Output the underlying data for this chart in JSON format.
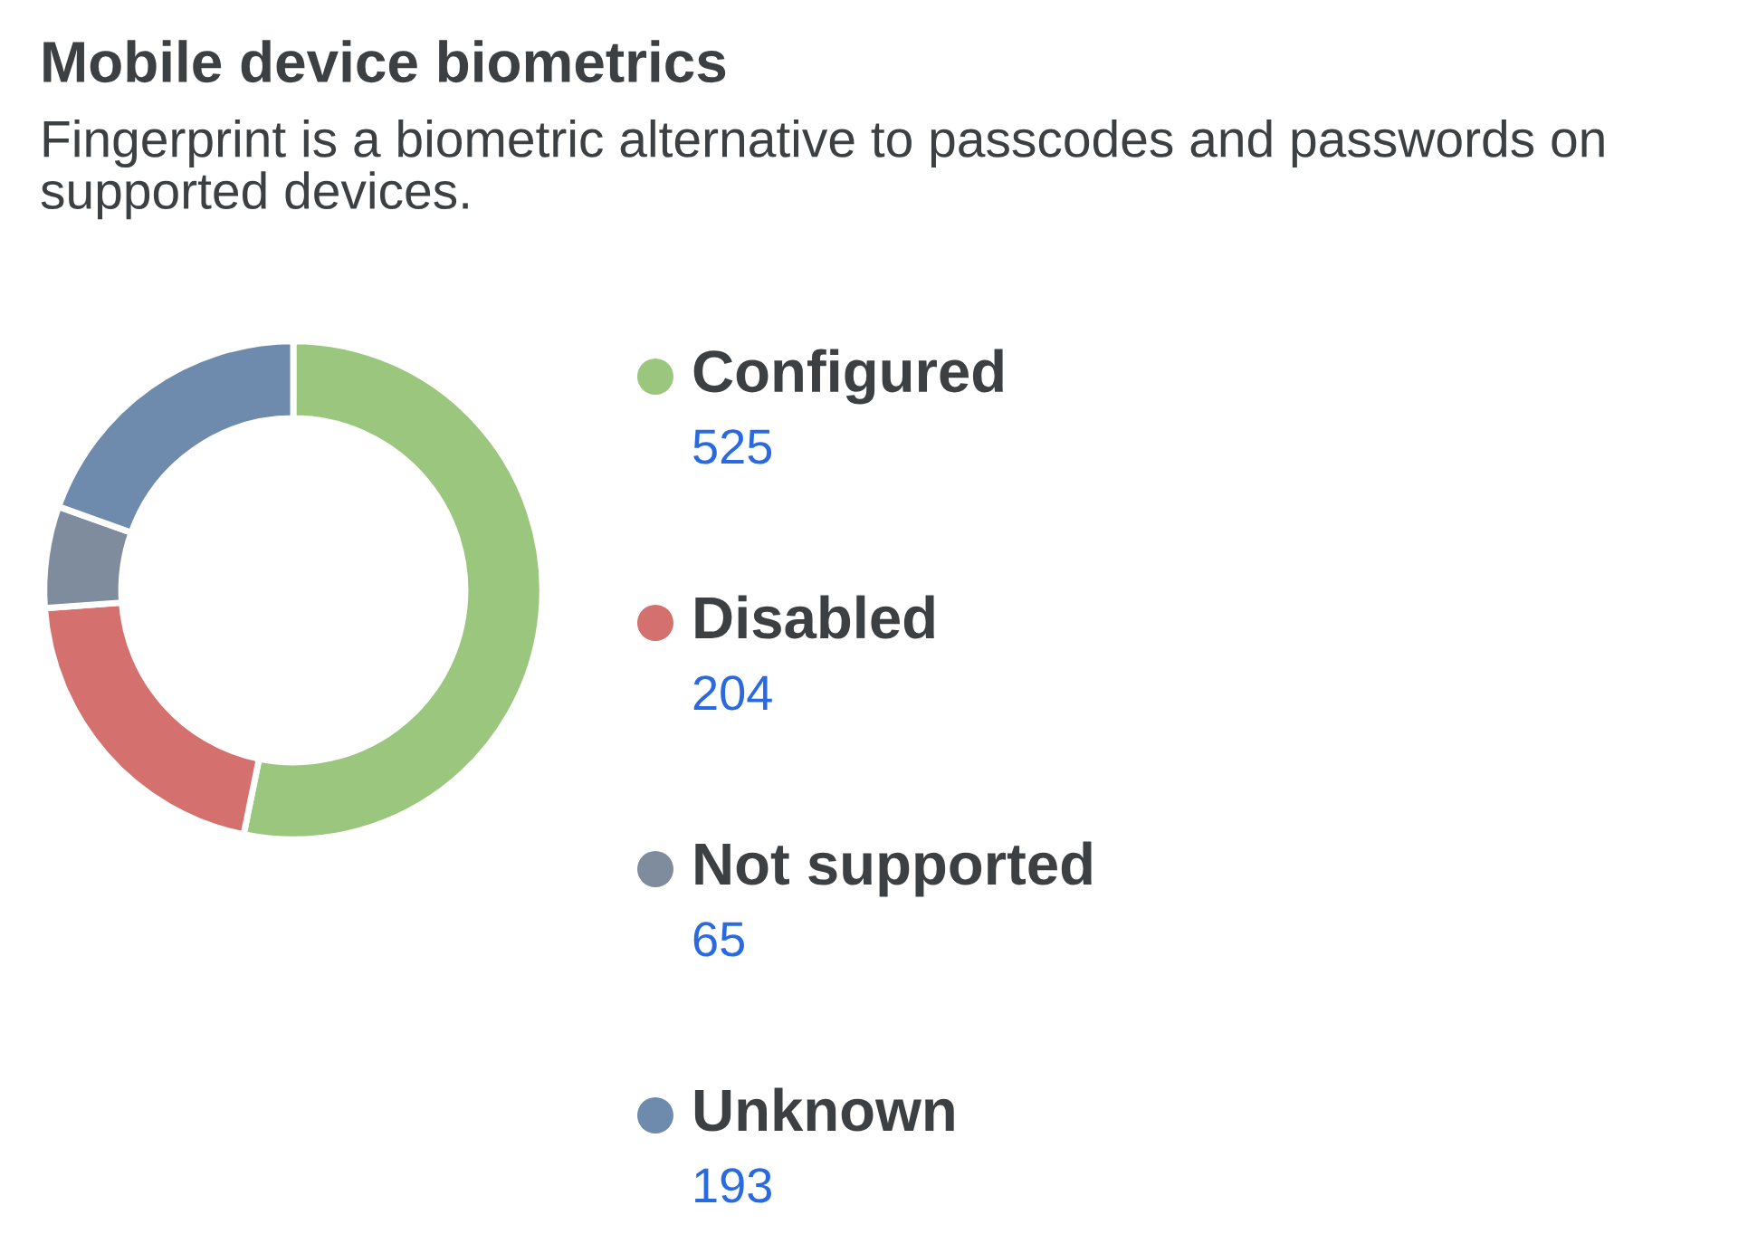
{
  "chart_data": {
    "type": "donut",
    "title": "Mobile device biometrics",
    "subtitle": "Fingerprint is a biometric alternative to passcodes and passwords on supported devices.",
    "categories": [
      "Configured",
      "Disabled",
      "Not supported",
      "Unknown"
    ],
    "values": [
      525,
      204,
      65,
      193
    ],
    "colors": [
      "#9bc67e",
      "#d4706d",
      "#7e8c9e",
      "#6e8bad"
    ],
    "legend": "right",
    "data_labels": true
  }
}
